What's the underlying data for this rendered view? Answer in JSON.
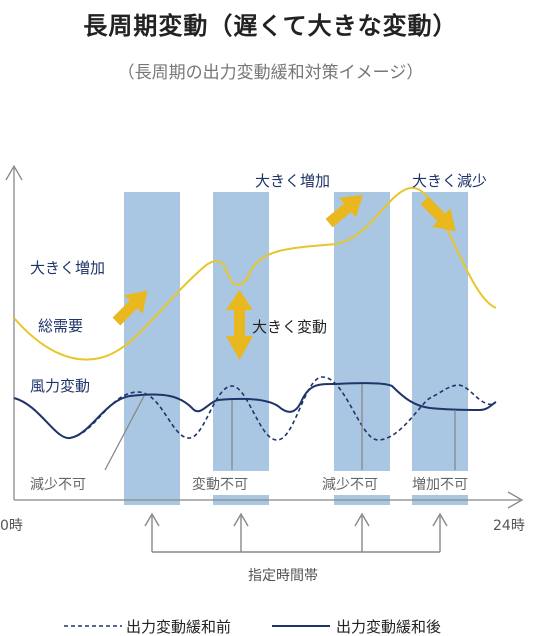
{
  "title": "長周期変動（遅くて大きな変動）",
  "subtitle": "（長周期の出力変動緩和対策イメージ）",
  "labels": {
    "big_increase_left": "大きく増加",
    "demand": "総需要",
    "big_change": "大きく変動",
    "wind": "風力変動",
    "big_increase_top": "大きく増加",
    "big_decrease": "大きく減少"
  },
  "constraints": [
    "減少不可",
    "変動不可",
    "減少不可",
    "増加不可"
  ],
  "axis": {
    "start": "0時",
    "end": "24時"
  },
  "designated_period": "指定時間帯",
  "legend": {
    "before": "出力変動緩和前",
    "after": "出力変動緩和後"
  },
  "colors": {
    "band": "#a9c7e3",
    "demand_line": "#e8c52a",
    "wind_line": "#1f3468",
    "arrow": "#e8b81e",
    "axis": "#888888"
  }
}
